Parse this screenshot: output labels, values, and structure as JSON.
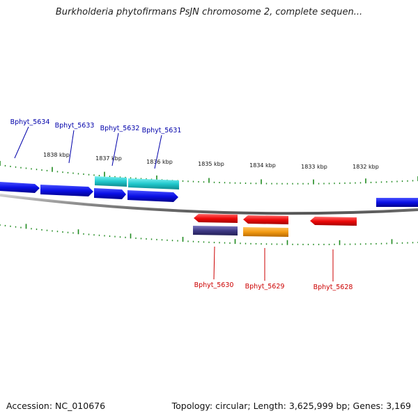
{
  "title": "Burkholderia phytofirmans PsJN chromosome 2, complete sequen...",
  "footer": {
    "accession": "Accession: NC_010676",
    "topology": "Topology: circular; Length: 3,625,999 bp; Genes: 3,169"
  },
  "colors": {
    "forward_gene": "#0a10e6",
    "forward_gene_alt": "#20c8cc",
    "reverse_gene": "#ee0a0a",
    "reverse_gene_alt_1": "#3f3a86",
    "reverse_gene_alt_2": "#f29a12",
    "tick": "#1f8a1f",
    "backbone": "#8a8a8a",
    "forward_label": "#0000aa",
    "reverse_label": "#cc0000"
  },
  "kbp_labels": [
    "1838 kbp",
    "1837 kbp",
    "1836 kbp",
    "1835 kbp",
    "1834 kbp",
    "1833 kbp",
    "1832 kbp"
  ],
  "gene_labels": {
    "forward": [
      "Bphyt_5634",
      "Bphyt_5633",
      "Bphyt_5632",
      "Bphyt_5631"
    ],
    "reverse": [
      "Bphyt_5630",
      "Bphyt_5629",
      "Bphyt_5628"
    ]
  }
}
